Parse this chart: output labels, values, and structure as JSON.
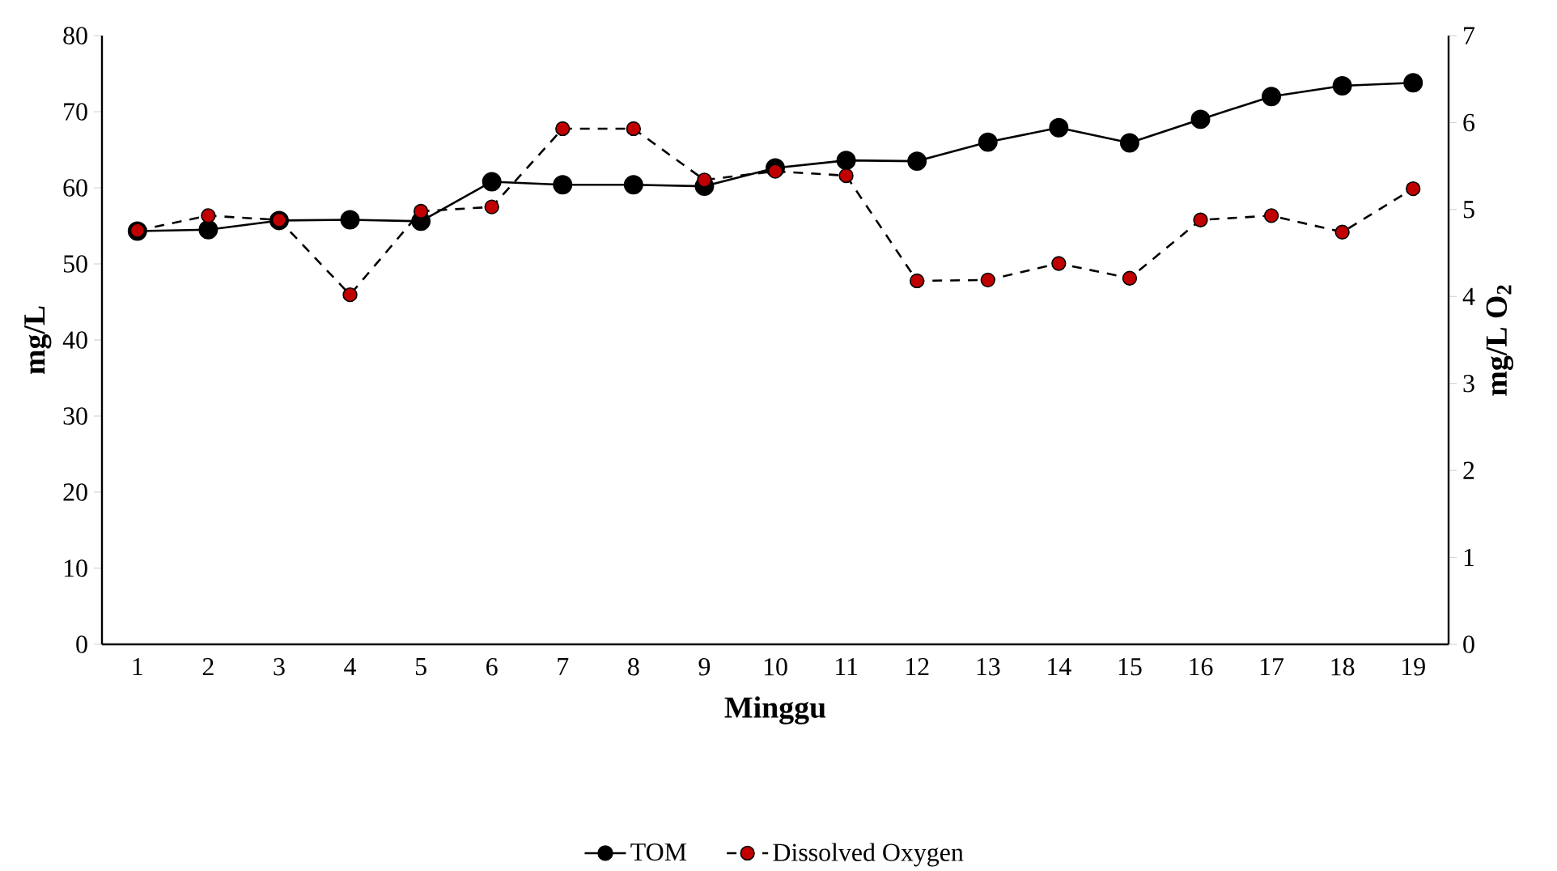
{
  "chart_data": {
    "type": "line",
    "xlabel": "Minggu",
    "ylabel": "mg/L",
    "y2label": "mg/L O$_{2}$",
    "categories": [
      "1",
      "2",
      "3",
      "4",
      "5",
      "6",
      "7",
      "8",
      "9",
      "10",
      "11",
      "12",
      "13",
      "14",
      "15",
      "16",
      "17",
      "18",
      "19"
    ],
    "ylim": [
      0,
      80
    ],
    "yticks": [
      0,
      10,
      20,
      30,
      40,
      50,
      60,
      70,
      80
    ],
    "y2lim": [
      0,
      7
    ],
    "y2ticks": [
      0,
      1,
      2,
      3,
      4,
      5,
      6,
      7
    ],
    "marker": "circle",
    "legend": "bottom",
    "series": [
      {
        "name": "TOM",
        "color": "#000000",
        "line_style": "solid",
        "values": [
          54.3,
          54.5,
          55.7,
          55.8,
          55.6,
          60.8,
          60.4,
          60.4,
          60.2,
          62.6,
          63.6,
          63.5,
          66.0,
          67.9,
          65.9,
          69.0,
          72.0,
          73.4,
          73.8
        ]
      },
      {
        "name": "Dissolved Oxygen",
        "color": "#c00000",
        "line_style": "dashed",
        "axis": "y2",
        "values": [
          4.76,
          4.93,
          4.88,
          4.02,
          4.98,
          5.03,
          5.93,
          5.93,
          5.34,
          5.44,
          5.39,
          4.18,
          4.19,
          4.38,
          4.21,
          4.88,
          4.93,
          4.74,
          5.24
        ]
      }
    ]
  }
}
